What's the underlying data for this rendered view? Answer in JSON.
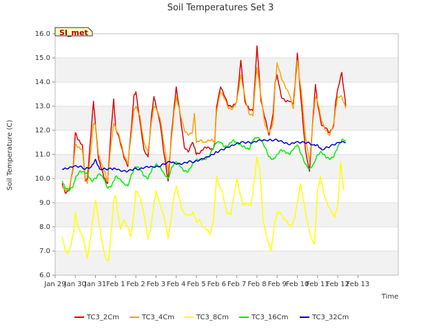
{
  "chart_data": {
    "type": "line",
    "title": "Soil Temperatures Set 3",
    "xlabel": "Time",
    "ylabel": "Soil Temperature (C)",
    "ylim": [
      6.0,
      16.0
    ],
    "xlim": [
      0,
      17
    ],
    "yticks": [
      "6.0",
      "7.0",
      "8.0",
      "9.0",
      "10.0",
      "11.0",
      "12.0",
      "13.0",
      "14.0",
      "15.0",
      "16.0"
    ],
    "xtick_labels": [
      "Jan 29",
      "Jan 30",
      "Jan 31",
      "Feb 1",
      "Feb 2",
      "Feb 3",
      "Feb 4",
      "Feb 5",
      "Feb 6",
      "Feb 7",
      "Feb 8",
      "Feb 9",
      "Feb 10",
      "Feb 11",
      "Feb 12",
      "Feb 13"
    ],
    "xtick_positions": [
      0,
      1,
      2,
      3,
      4,
      5,
      6,
      7,
      8,
      9,
      10,
      11,
      12,
      13,
      14,
      15
    ],
    "grid": true,
    "legend_position": "bottom",
    "badge": "SI_met",
    "series": [
      {
        "name": "TC3_2Cm",
        "color": "#dd0000",
        "x": [
          0.35,
          0.5,
          0.7,
          0.9,
          1.0,
          1.15,
          1.35,
          1.5,
          1.6,
          1.75,
          1.9,
          2.0,
          2.15,
          2.3,
          2.45,
          2.6,
          2.75,
          2.9,
          3.0,
          3.2,
          3.4,
          3.6,
          3.8,
          3.9,
          4.0,
          4.2,
          4.4,
          4.6,
          4.8,
          4.9,
          5.0,
          5.2,
          5.4,
          5.6,
          5.75,
          5.9,
          6.0,
          6.2,
          6.4,
          6.6,
          6.8,
          6.9,
          7.0,
          7.2,
          7.4,
          7.6,
          7.8,
          7.9,
          8.0,
          8.2,
          8.4,
          8.6,
          8.8,
          9.0,
          9.2,
          9.4,
          9.6,
          9.8,
          9.9,
          10.0,
          10.2,
          10.4,
          10.6,
          10.8,
          10.9,
          11.0,
          11.2,
          11.4,
          11.6,
          11.8,
          11.9,
          12.0,
          12.2,
          12.4,
          12.6,
          12.8,
          12.9,
          13.0,
          13.2,
          13.4,
          13.6,
          13.8,
          13.9,
          14.0,
          14.2,
          14.4
        ],
        "y": [
          9.8,
          9.4,
          9.5,
          10.5,
          11.9,
          11.6,
          11.4,
          9.9,
          10.0,
          11.6,
          13.2,
          12.2,
          10.8,
          10.4,
          10.0,
          9.8,
          11.8,
          13.3,
          12.1,
          11.6,
          10.9,
          10.5,
          12.3,
          13.4,
          13.6,
          12.4,
          11.2,
          10.9,
          12.8,
          13.4,
          13.0,
          12.3,
          11.0,
          9.9,
          11.7,
          13.0,
          13.8,
          12.6,
          11.3,
          11.1,
          11.5,
          11.3,
          11.0,
          11.1,
          11.3,
          11.3,
          11.2,
          11.4,
          13.0,
          13.8,
          13.4,
          13.0,
          13.0,
          13.2,
          14.9,
          13.2,
          12.9,
          12.8,
          14.0,
          15.5,
          13.2,
          12.5,
          11.8,
          12.7,
          14.0,
          14.3,
          13.4,
          13.2,
          13.2,
          13.1,
          14.0,
          15.2,
          13.1,
          11.2,
          10.3,
          12.8,
          13.9,
          13.1,
          12.2,
          12.1,
          11.9,
          12.2,
          13.2,
          13.7,
          14.4,
          13.0
        ]
      },
      {
        "name": "TC3_4Cm",
        "color": "#ffa000",
        "x": [
          0.35,
          0.5,
          0.7,
          0.9,
          1.0,
          1.15,
          1.35,
          1.5,
          1.6,
          1.75,
          1.9,
          2.0,
          2.15,
          2.3,
          2.45,
          2.6,
          2.75,
          2.9,
          3.0,
          3.2,
          3.4,
          3.6,
          3.8,
          3.9,
          4.0,
          4.2,
          4.4,
          4.6,
          4.8,
          4.9,
          5.0,
          5.2,
          5.4,
          5.6,
          5.75,
          5.9,
          6.0,
          6.2,
          6.4,
          6.6,
          6.8,
          6.9,
          7.0,
          7.2,
          7.4,
          7.6,
          7.8,
          7.9,
          8.0,
          8.2,
          8.4,
          8.6,
          8.8,
          9.0,
          9.2,
          9.4,
          9.6,
          9.8,
          9.9,
          10.0,
          10.2,
          10.4,
          10.6,
          10.8,
          10.9,
          11.0,
          11.2,
          11.4,
          11.6,
          11.8,
          11.9,
          12.0,
          12.2,
          12.4,
          12.6,
          12.8,
          12.9,
          13.0,
          13.2,
          13.4,
          13.6,
          13.8,
          13.9,
          14.0,
          14.2,
          14.4
        ],
        "y": [
          9.7,
          9.5,
          9.6,
          10.4,
          11.4,
          11.3,
          11.2,
          10.0,
          9.8,
          11.0,
          12.3,
          12.2,
          11.0,
          10.6,
          10.3,
          9.9,
          11.3,
          12.3,
          12.1,
          11.7,
          11.0,
          10.6,
          12.0,
          12.8,
          13.0,
          12.6,
          11.5,
          11.1,
          12.5,
          13.0,
          12.9,
          12.5,
          11.4,
          10.3,
          11.5,
          12.8,
          13.4,
          12.7,
          12.0,
          11.8,
          11.9,
          12.7,
          11.5,
          11.6,
          11.5,
          11.6,
          11.6,
          11.5,
          12.8,
          13.6,
          13.3,
          12.9,
          12.9,
          13.2,
          14.3,
          13.4,
          12.7,
          12.6,
          13.7,
          14.6,
          13.4,
          12.2,
          11.9,
          12.3,
          13.9,
          14.8,
          14.2,
          13.8,
          13.5,
          12.9,
          13.9,
          14.9,
          13.6,
          11.8,
          10.7,
          12.6,
          13.4,
          13.2,
          12.4,
          12.0,
          11.8,
          12.3,
          12.9,
          13.4,
          13.4,
          12.9
        ]
      },
      {
        "name": "TC3_8Cm",
        "color": "#ffff00",
        "x": [
          0.35,
          0.5,
          0.65,
          0.8,
          0.95,
          1.0,
          1.1,
          1.25,
          1.4,
          1.6,
          1.75,
          1.9,
          2.0,
          2.1,
          2.2,
          2.35,
          2.5,
          2.65,
          2.8,
          2.9,
          3.0,
          3.1,
          3.25,
          3.4,
          3.6,
          3.75,
          3.9,
          4.0,
          4.1,
          4.25,
          4.4,
          4.6,
          4.75,
          4.9,
          5.0,
          5.1,
          5.25,
          5.4,
          5.6,
          5.75,
          5.9,
          6.0,
          6.15,
          6.3,
          6.5,
          6.7,
          6.85,
          7.0,
          7.15,
          7.3,
          7.5,
          7.7,
          7.85,
          8.0,
          8.15,
          8.3,
          8.5,
          8.7,
          8.85,
          9.0,
          9.15,
          9.3,
          9.5,
          9.7,
          9.85,
          10.0,
          10.15,
          10.3,
          10.5,
          10.7,
          10.85,
          11.0,
          11.15,
          11.3,
          11.5,
          11.7,
          11.85,
          12.0,
          12.15,
          12.3,
          12.5,
          12.7,
          12.85,
          13.0,
          13.15,
          13.3,
          13.5,
          13.7,
          13.85,
          14.0,
          14.15,
          14.3
        ],
        "y": [
          7.6,
          7.0,
          6.9,
          7.3,
          8.0,
          8.6,
          8.1,
          7.8,
          7.5,
          6.7,
          7.5,
          8.5,
          9.1,
          8.6,
          8.0,
          7.3,
          6.7,
          6.6,
          8.0,
          9.1,
          9.3,
          8.6,
          7.9,
          8.3,
          8.0,
          7.6,
          8.5,
          9.5,
          9.4,
          9.1,
          8.5,
          7.5,
          8.0,
          9.0,
          9.5,
          9.2,
          8.8,
          8.4,
          7.5,
          8.3,
          9.3,
          9.7,
          9.2,
          8.7,
          8.5,
          8.5,
          8.6,
          8.2,
          8.3,
          8.0,
          7.9,
          7.7,
          8.3,
          10.1,
          9.7,
          9.4,
          8.6,
          8.5,
          9.2,
          10.0,
          9.4,
          8.9,
          9.0,
          8.9,
          9.8,
          10.9,
          10.3,
          8.3,
          7.5,
          7.0,
          8.0,
          8.6,
          8.6,
          8.4,
          8.2,
          8.0,
          8.3,
          9.0,
          9.8,
          9.1,
          8.2,
          7.5,
          7.3,
          9.5,
          10.1,
          9.4,
          8.9,
          8.6,
          8.4,
          8.9,
          10.7,
          9.5
        ]
      },
      {
        "name": "TC3_16Cm",
        "color": "#00ee00",
        "x": [
          0.35,
          0.5,
          0.7,
          0.9,
          1.0,
          1.2,
          1.4,
          1.6,
          1.8,
          2.0,
          2.2,
          2.4,
          2.6,
          2.8,
          3.0,
          3.2,
          3.4,
          3.6,
          3.8,
          4.0,
          4.2,
          4.4,
          4.6,
          4.8,
          5.0,
          5.2,
          5.4,
          5.6,
          5.8,
          6.0,
          6.2,
          6.4,
          6.6,
          6.8,
          7.0,
          7.2,
          7.4,
          7.6,
          7.8,
          8.0,
          8.2,
          8.4,
          8.6,
          8.8,
          9.0,
          9.2,
          9.4,
          9.6,
          9.8,
          10.0,
          10.2,
          10.4,
          10.6,
          10.8,
          11.0,
          11.2,
          11.4,
          11.6,
          11.8,
          12.0,
          12.2,
          12.4,
          12.6,
          12.8,
          13.0,
          13.2,
          13.4,
          13.6,
          13.8,
          14.0,
          14.2,
          14.4
        ],
        "y": [
          9.9,
          9.6,
          9.5,
          9.7,
          10.0,
          10.3,
          10.3,
          10.2,
          9.9,
          10.0,
          10.2,
          10.0,
          9.6,
          9.7,
          10.1,
          10.0,
          9.8,
          9.7,
          10.2,
          10.5,
          10.4,
          10.1,
          10.0,
          10.4,
          10.6,
          10.5,
          10.2,
          10.0,
          10.5,
          10.7,
          10.5,
          10.3,
          10.3,
          10.6,
          10.8,
          10.8,
          10.8,
          10.9,
          11.2,
          11.5,
          11.5,
          11.3,
          11.4,
          11.6,
          11.5,
          11.4,
          11.3,
          11.2,
          11.6,
          11.7,
          11.6,
          11.3,
          10.9,
          10.8,
          11.0,
          11.2,
          11.1,
          11.0,
          11.2,
          11.4,
          11.0,
          10.6,
          10.4,
          10.6,
          11.0,
          11.1,
          10.9,
          10.8,
          10.9,
          11.3,
          11.6,
          11.6
        ]
      },
      {
        "name": "TC3_32Cm",
        "color": "#0000cc",
        "x": [
          0.35,
          0.6,
          0.9,
          1.2,
          1.5,
          1.8,
          2.0,
          2.2,
          2.5,
          2.8,
          3.0,
          3.3,
          3.6,
          3.9,
          4.2,
          4.5,
          4.8,
          5.1,
          5.4,
          5.7,
          6.0,
          6.3,
          6.6,
          6.9,
          7.2,
          7.5,
          7.8,
          8.0,
          8.3,
          8.6,
          8.9,
          9.2,
          9.5,
          9.8,
          10.1,
          10.4,
          10.7,
          11.0,
          11.3,
          11.6,
          11.9,
          12.2,
          12.5,
          12.8,
          13.0,
          13.2,
          13.5,
          13.8,
          14.1,
          14.4
        ],
        "y": [
          10.4,
          10.4,
          10.5,
          10.5,
          10.4,
          10.5,
          10.8,
          10.4,
          10.4,
          10.4,
          10.4,
          10.3,
          10.3,
          10.4,
          10.4,
          10.5,
          10.5,
          10.5,
          10.6,
          10.7,
          10.6,
          10.6,
          10.7,
          10.7,
          10.8,
          10.9,
          11.0,
          11.1,
          11.2,
          11.3,
          11.4,
          11.5,
          11.5,
          11.5,
          11.6,
          11.6,
          11.6,
          11.6,
          11.5,
          11.4,
          11.5,
          11.5,
          11.5,
          11.4,
          11.4,
          11.2,
          11.3,
          11.4,
          11.5,
          11.5
        ]
      }
    ]
  }
}
